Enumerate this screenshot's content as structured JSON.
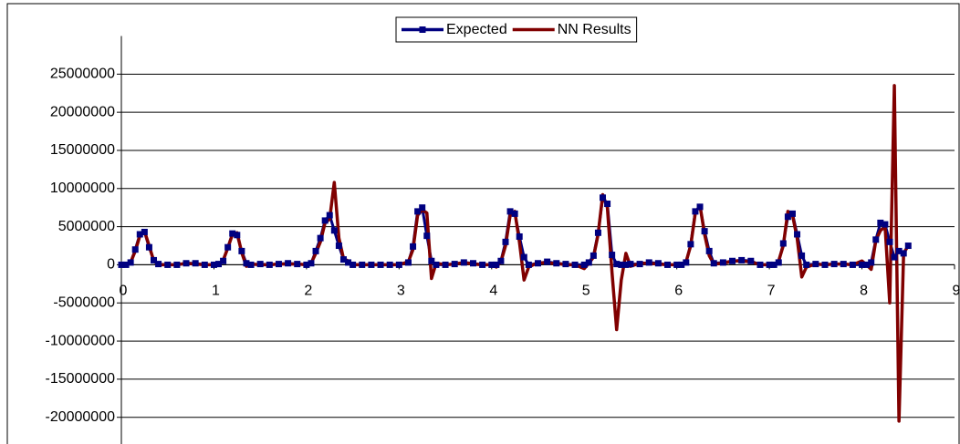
{
  "chart_data": {
    "type": "line",
    "x": [
      0,
      0.05,
      0.1,
      0.15,
      0.2,
      0.25,
      0.3,
      0.35,
      0.4,
      0.5,
      0.6,
      0.7,
      0.8,
      0.9,
      1.0,
      1.05,
      1.1,
      1.15,
      1.2,
      1.25,
      1.3,
      1.35,
      1.4,
      1.5,
      1.6,
      1.7,
      1.8,
      1.9,
      2.0,
      2.05,
      2.1,
      2.15,
      2.2,
      2.25,
      2.3,
      2.35,
      2.4,
      2.45,
      2.5,
      2.6,
      2.7,
      2.8,
      2.9,
      3.0,
      3.1,
      3.15,
      3.2,
      3.25,
      3.3,
      3.35,
      3.4,
      3.5,
      3.6,
      3.7,
      3.8,
      3.9,
      4.0,
      4.05,
      4.1,
      4.15,
      4.2,
      4.25,
      4.3,
      4.35,
      4.4,
      4.5,
      4.6,
      4.7,
      4.8,
      4.9,
      5.0,
      5.05,
      5.1,
      5.15,
      5.2,
      5.25,
      5.3,
      5.35,
      5.4,
      5.45,
      5.5,
      5.6,
      5.7,
      5.8,
      5.9,
      6.0,
      6.05,
      6.1,
      6.15,
      6.2,
      6.25,
      6.3,
      6.35,
      6.4,
      6.5,
      6.6,
      6.7,
      6.8,
      6.9,
      7.0,
      7.05,
      7.1,
      7.15,
      7.2,
      7.25,
      7.3,
      7.35,
      7.4,
      7.5,
      7.6,
      7.7,
      7.8,
      7.9,
      8.0,
      8.05,
      8.1,
      8.15,
      8.2,
      8.25,
      8.3,
      8.35,
      8.4,
      8.45,
      8.5
    ],
    "series": [
      {
        "name": "Expected",
        "color": "#000080",
        "marker": "square",
        "values": [
          0,
          0,
          300000,
          2000000,
          4000000,
          4300000,
          2300000,
          600000,
          100000,
          0,
          0,
          200000,
          200000,
          0,
          0,
          100000,
          500000,
          2300000,
          4100000,
          3900000,
          1800000,
          200000,
          0,
          100000,
          0,
          100000,
          200000,
          100000,
          0,
          200000,
          1800000,
          3500000,
          5800000,
          6500000,
          4500000,
          2500000,
          700000,
          300000,
          0,
          0,
          0,
          0,
          0,
          0,
          300000,
          2400000,
          7000000,
          7500000,
          3800000,
          500000,
          0,
          0,
          100000,
          300000,
          200000,
          0,
          0,
          0,
          500000,
          3000000,
          7000000,
          6700000,
          3700000,
          1000000,
          0,
          200000,
          400000,
          200000,
          100000,
          0,
          0,
          300000,
          1200000,
          4200000,
          8800000,
          8000000,
          1300000,
          100000,
          0,
          0,
          100000,
          100000,
          300000,
          200000,
          0,
          0,
          0,
          300000,
          2700000,
          7000000,
          7600000,
          4400000,
          1800000,
          200000,
          300000,
          500000,
          600000,
          500000,
          0,
          0,
          0,
          300000,
          2800000,
          6300000,
          6700000,
          4000000,
          1200000,
          0,
          100000,
          0,
          100000,
          100000,
          0,
          0,
          0,
          300000,
          3300000,
          5500000,
          5300000,
          3000000,
          1000000,
          1800000,
          1500000,
          2500000
        ]
      },
      {
        "name": "NN Results",
        "color": "#800000",
        "marker": "none",
        "values": [
          0,
          0,
          300000,
          1800000,
          3800000,
          4400000,
          2500000,
          500000,
          0,
          0,
          0,
          200000,
          100000,
          0,
          0,
          100000,
          600000,
          2200000,
          4000000,
          4200000,
          1600000,
          -200000,
          100000,
          0,
          0,
          100000,
          100000,
          100000,
          0,
          200000,
          1500000,
          3000000,
          5500000,
          6000000,
          10800000,
          3500000,
          800000,
          500000,
          0,
          0,
          0,
          0,
          0,
          0,
          400000,
          2000000,
          6500000,
          7200000,
          6800000,
          -1800000,
          200000,
          0,
          100000,
          300000,
          100000,
          0,
          0,
          -300000,
          400000,
          2500000,
          6500000,
          7000000,
          3000000,
          -2000000,
          -300000,
          300000,
          200000,
          200000,
          0,
          0,
          -500000,
          200000,
          1000000,
          4000000,
          9200000,
          7500000,
          -1000000,
          -8500000,
          -2000000,
          1500000,
          -200000,
          200000,
          200000,
          100000,
          0,
          0,
          0,
          400000,
          2500000,
          6800000,
          7800000,
          4000000,
          1200000,
          100000,
          200000,
          500000,
          500000,
          400000,
          0,
          0,
          -200000,
          500000,
          2500000,
          7000000,
          6500000,
          3500000,
          -1600000,
          -300000,
          100000,
          0,
          100000,
          100000,
          0,
          500000,
          0,
          -600000,
          3200000,
          4500000,
          5000000,
          -5000000,
          23500000,
          -20500000,
          1500000,
          2500000
        ]
      }
    ],
    "xlim": [
      0,
      9
    ],
    "xticks": [
      0,
      1,
      2,
      3,
      4,
      5,
      6,
      7,
      8,
      9
    ],
    "ylim": [
      -23500000,
      30000000
    ],
    "yticks": [
      -20000000,
      -15000000,
      -10000000,
      -5000000,
      0,
      5000000,
      10000000,
      15000000,
      20000000,
      25000000
    ],
    "grid": true,
    "legend": "top"
  }
}
